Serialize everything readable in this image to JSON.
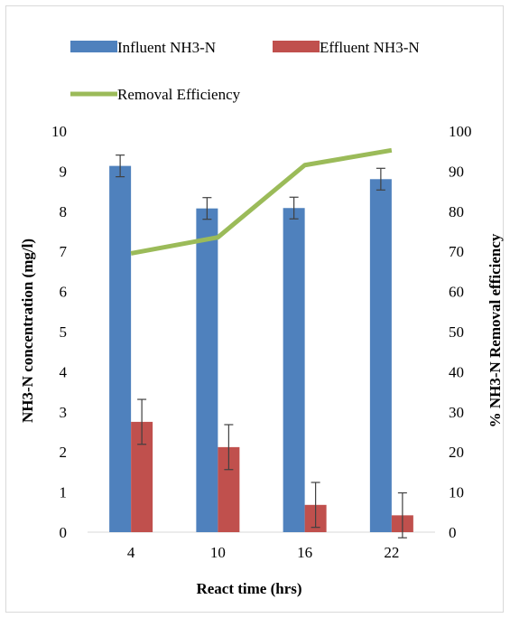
{
  "chart_data": {
    "type": "bar",
    "categories": [
      "4",
      "10",
      "16",
      "22"
    ],
    "xlabel": "React time (hrs)",
    "ylabel": "NH3-N concentration (mg/l)",
    "y2label": "% NH3-N Removal efficiency",
    "ylim": [
      0,
      10
    ],
    "y2lim": [
      0,
      100
    ],
    "yticks": [
      "0",
      "1",
      "2",
      "3",
      "4",
      "5",
      "6",
      "7",
      "8",
      "9",
      "10"
    ],
    "y2ticks": [
      "0",
      "10",
      "20",
      "30",
      "40",
      "50",
      "60",
      "70",
      "80",
      "90",
      "100"
    ],
    "legend_position": "top",
    "grid": false,
    "series": [
      {
        "name": "Influent NH3-N",
        "kind": "bar",
        "axis": "left",
        "color": "#4f81bd",
        "values": [
          9.13,
          8.07,
          8.08,
          8.8
        ],
        "errors": [
          0.27,
          0.27,
          0.27,
          0.27
        ]
      },
      {
        "name": "Effluent NH3-N",
        "kind": "bar",
        "axis": "left",
        "color": "#c0504d",
        "values": [
          2.75,
          2.12,
          0.68,
          0.42
        ],
        "errors": [
          0.56,
          0.56,
          0.56,
          0.56
        ]
      },
      {
        "name": "Removal Efficiency",
        "kind": "line",
        "axis": "right",
        "color": "#9bbb59",
        "values": [
          69.5,
          73.5,
          91.5,
          95.2
        ]
      }
    ]
  }
}
